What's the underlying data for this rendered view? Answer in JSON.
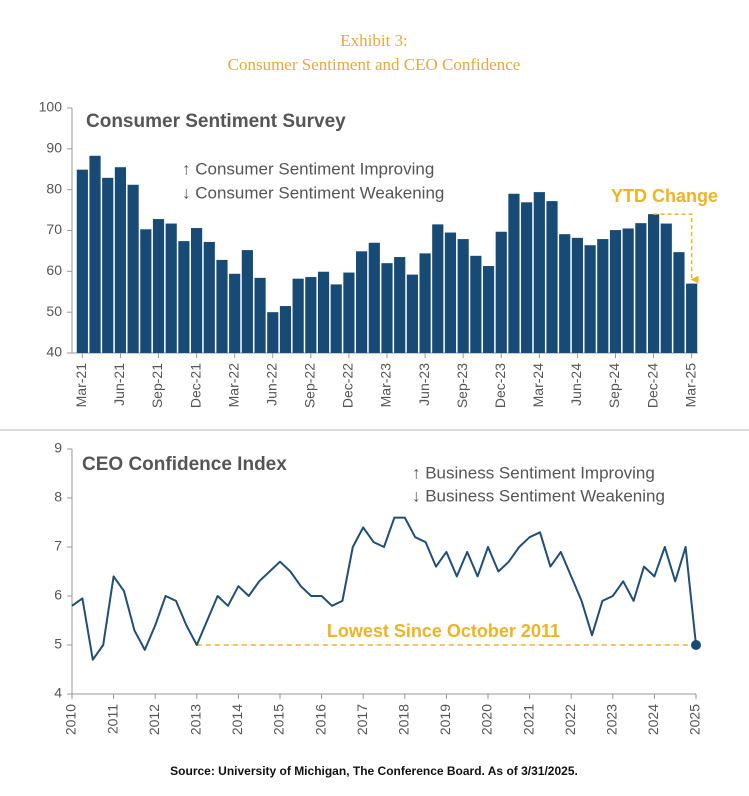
{
  "header": {
    "title": "Exhibit 3:",
    "subtitle": "Consumer Sentiment and CEO Confidence"
  },
  "chart_data": [
    {
      "type": "bar",
      "title": "Consumer Sentiment Survey",
      "color": "#174a74",
      "annotations": [
        "↑ Consumer Sentiment Improving",
        "↓ Consumer Sentiment Weakening",
        "YTD Change"
      ],
      "categories": [
        "Mar-21",
        null,
        null,
        "Jun-21",
        null,
        null,
        "Sep-21",
        null,
        null,
        "Dec-21",
        null,
        null,
        "Mar-22",
        null,
        null,
        "Jun-22",
        null,
        null,
        "Sep-22",
        null,
        null,
        "Dec-22",
        null,
        null,
        "Mar-23",
        null,
        null,
        "Jun-23",
        null,
        null,
        "Sep-23",
        null,
        null,
        "Dec-23",
        null,
        null,
        "Mar-24",
        null,
        null,
        "Jun-24",
        null,
        null,
        "Sep-24",
        null,
        null,
        "Dec-24",
        null,
        null,
        "Mar-25"
      ],
      "values": [
        84.9,
        88.3,
        82.9,
        85.5,
        81.2,
        70.3,
        72.8,
        71.7,
        67.4,
        70.6,
        67.2,
        62.8,
        59.4,
        65.2,
        58.4,
        50.0,
        51.5,
        58.2,
        58.6,
        59.9,
        56.8,
        59.7,
        64.9,
        67.0,
        62.0,
        63.5,
        59.2,
        64.4,
        71.5,
        69.5,
        67.9,
        63.8,
        61.3,
        69.7,
        79.0,
        76.9,
        79.4,
        77.2,
        69.1,
        68.2,
        66.4,
        67.9,
        70.1,
        70.5,
        71.8,
        74.0,
        71.7,
        64.7,
        57.0
      ],
      "ylim": [
        40,
        100
      ],
      "yticks": [
        40,
        50,
        60,
        70,
        80,
        90,
        100
      ]
    },
    {
      "type": "line",
      "title": "CEO Confidence Index",
      "color": "#1f4e79",
      "annotations": [
        "↑ Business Sentiment Improving",
        "↓ Business Sentiment Weakening",
        "Lowest  Since  October  2011"
      ],
      "x": [
        2010,
        2010.25,
        2010.5,
        2010.75,
        2011,
        2011.25,
        2011.5,
        2011.75,
        2012,
        2012.25,
        2012.5,
        2012.75,
        2013,
        2013.25,
        2013.5,
        2013.75,
        2014,
        2014.25,
        2014.5,
        2014.75,
        2015,
        2015.25,
        2015.5,
        2015.75,
        2016,
        2016.25,
        2016.5,
        2016.75,
        2017,
        2017.25,
        2017.5,
        2017.75,
        2018,
        2018.25,
        2018.5,
        2018.75,
        2019,
        2019.25,
        2019.5,
        2019.75,
        2020,
        2020.25,
        2020.5,
        2020.75,
        2021,
        2021.25,
        2021.5,
        2021.75,
        2022,
        2022.25,
        2022.5,
        2022.75,
        2023,
        2023.25,
        2023.5,
        2023.75,
        2024,
        2024.25,
        2024.5,
        2024.75,
        2025
      ],
      "values": [
        5.8,
        5.95,
        4.7,
        5.0,
        6.4,
        6.1,
        5.3,
        4.9,
        5.4,
        6.0,
        5.9,
        5.4,
        5.0,
        5.5,
        6.0,
        5.8,
        6.2,
        6.0,
        6.3,
        6.5,
        6.7,
        6.5,
        6.2,
        6.0,
        6.0,
        5.8,
        5.9,
        7.0,
        7.4,
        7.1,
        7.0,
        7.6,
        7.6,
        7.2,
        7.1,
        6.6,
        6.9,
        6.4,
        6.9,
        6.4,
        7.0,
        6.5,
        6.7,
        7.0,
        7.2,
        7.3,
        6.6,
        6.9,
        6.4,
        5.9,
        5.2,
        5.9,
        6.0,
        6.3,
        5.9,
        6.6,
        6.4,
        7.0,
        6.3,
        7.0,
        5.0
      ],
      "xlim": [
        2010,
        2025
      ],
      "xticks": [
        2010,
        2011,
        2012,
        2013,
        2014,
        2015,
        2016,
        2017,
        2018,
        2019,
        2020,
        2021,
        2022,
        2023,
        2024,
        2025
      ],
      "ylim": [
        4,
        9
      ],
      "yticks": [
        4,
        5,
        6,
        7,
        8,
        9
      ]
    }
  ],
  "source": "Source: University of Michigan, The Conference Board. As of 3/31/2025."
}
